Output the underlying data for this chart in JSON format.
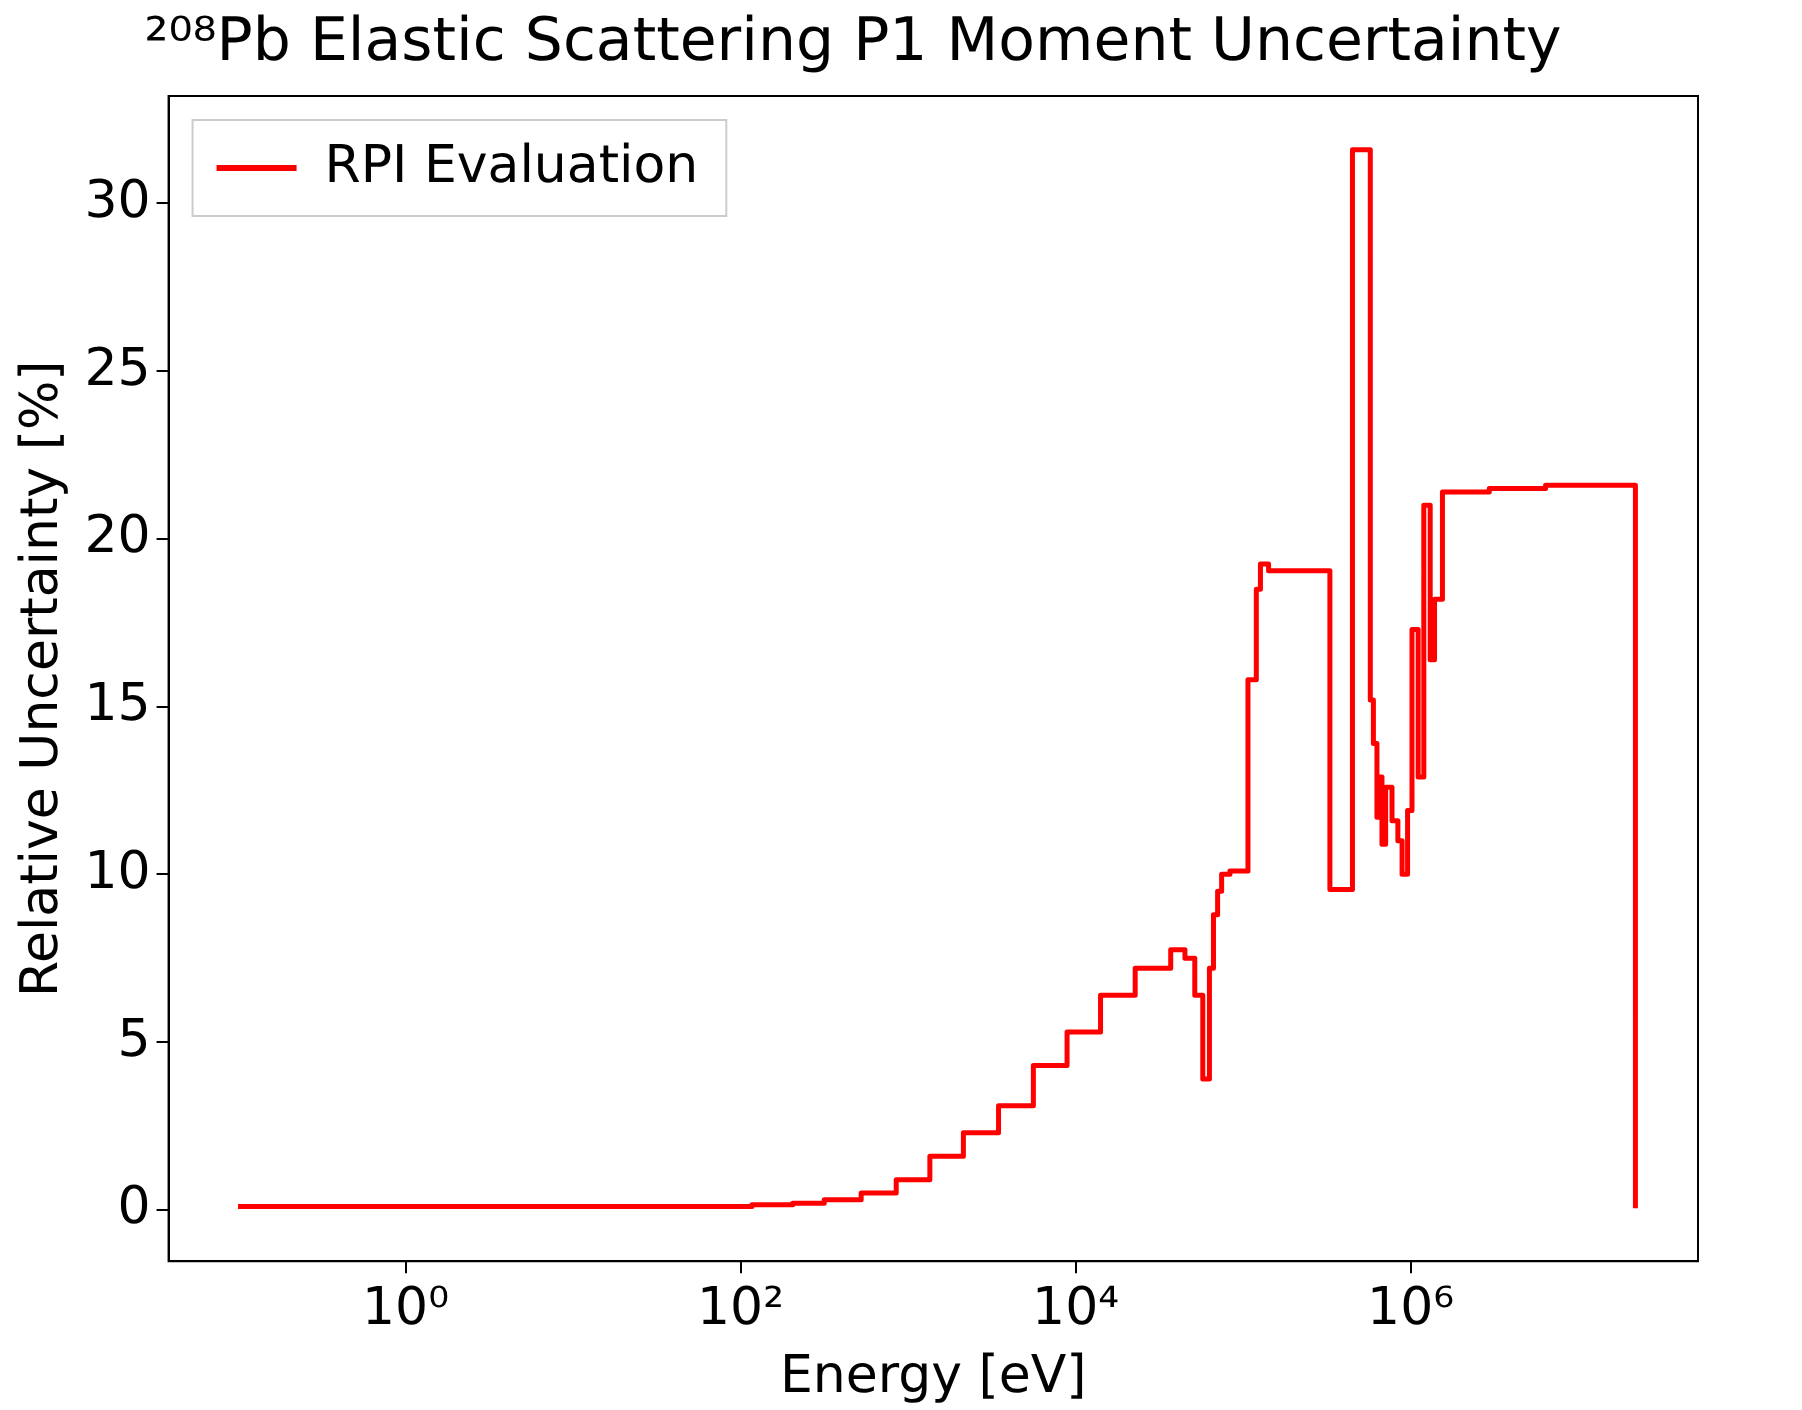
{
  "chart_data": {
    "type": "step",
    "title": "²⁰⁸Pb Elastic Scattering P1 Moment Uncertainty",
    "xlabel": "Energy [eV]",
    "ylabel": "Relative Uncertainty [%]",
    "log": "x",
    "grid": false,
    "legend": "top left",
    "xlim": [
      0.0385,
      52000000
    ],
    "ylim": [
      -1.53,
      33.2
    ],
    "xticks": [
      {
        "value": 1,
        "label": "10⁰"
      },
      {
        "value": 100,
        "label": "10²"
      },
      {
        "value": 10000,
        "label": "10⁴"
      },
      {
        "value": 1000000,
        "label": "10⁶"
      }
    ],
    "yticks": [
      0,
      5,
      10,
      15,
      20,
      25,
      30
    ],
    "series": [
      {
        "name": "RPI Evaluation",
        "color": "#ff0000",
        "x": [
          0.1,
          81,
          117,
          205,
          316,
          525,
          850,
          1350,
          2140,
          3470,
          5600,
          8900,
          14100,
          22700,
          37000,
          45000,
          51500,
          57500,
          63000,
          66600,
          70500,
          74500,
          83500,
          107000,
          120000,
          127000,
          142000,
          330000,
          450000,
          575000,
          600000,
          630000,
          650000,
          675000,
          710000,
          775000,
          840000,
          890000,
          960000,
          1020000,
          1110000,
          1200000,
          1310000,
          1390000,
          1550000,
          2950000,
          6400000,
          22000000
        ],
        "values": [
          0.1,
          0.1,
          0.15,
          0.2,
          0.3,
          0.5,
          0.9,
          1.6,
          2.3,
          3.1,
          4.3,
          5.3,
          6.4,
          7.2,
          7.75,
          7.5,
          6.4,
          3.9,
          7.2,
          8.8,
          9.5,
          10.0,
          10.1,
          15.8,
          18.5,
          19.25,
          19.05,
          9.55,
          31.6,
          15.2,
          13.9,
          11.7,
          12.9,
          10.9,
          12.6,
          11.6,
          11.0,
          10.0,
          11.9,
          17.3,
          12.9,
          21.0,
          16.4,
          18.2,
          21.4,
          21.5,
          21.6,
          0.05
        ]
      }
    ]
  }
}
